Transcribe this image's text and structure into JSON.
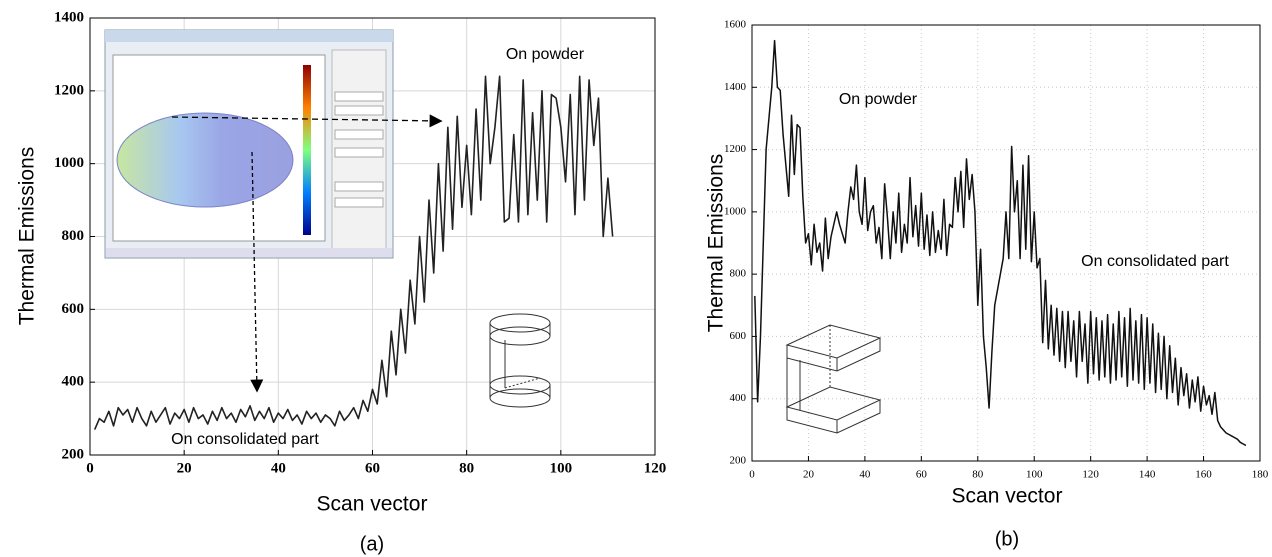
{
  "chart_data": [
    {
      "type": "line",
      "xlabel": "Scan vector",
      "ylabel": "Thermal Emissions",
      "caption": "(a)",
      "annotations": [
        "On powder",
        "On consolidated part"
      ],
      "xlim": [
        0,
        120
      ],
      "xticks": [
        0,
        20,
        40,
        60,
        80,
        100,
        120
      ],
      "ylim": [
        200,
        1400
      ],
      "yticks": [
        200,
        400,
        600,
        800,
        1000,
        1200,
        1400
      ],
      "grid": true,
      "color": "#222222",
      "x": [
        1,
        2,
        3,
        4,
        5,
        6,
        7,
        8,
        9,
        10,
        11,
        12,
        13,
        14,
        15,
        16,
        17,
        18,
        19,
        20,
        21,
        22,
        23,
        24,
        25,
        26,
        27,
        28,
        29,
        30,
        31,
        32,
        33,
        34,
        35,
        36,
        37,
        38,
        39,
        40,
        41,
        42,
        43,
        44,
        45,
        46,
        47,
        48,
        49,
        50,
        51,
        52,
        53,
        54,
        55,
        56,
        57,
        58,
        59,
        60,
        61,
        62,
        63,
        64,
        65,
        66,
        67,
        68,
        69,
        70,
        71,
        72,
        73,
        74,
        75,
        76,
        77,
        78,
        79,
        80,
        81,
        82,
        83,
        84,
        85,
        86,
        87,
        88,
        89,
        90,
        91,
        92,
        93,
        94,
        95,
        96,
        97,
        98,
        99,
        100,
        101,
        102,
        103,
        104,
        105,
        106,
        107,
        108,
        109,
        110,
        111
      ],
      "values": [
        270,
        300,
        290,
        320,
        280,
        330,
        310,
        325,
        290,
        330,
        300,
        280,
        320,
        290,
        310,
        330,
        285,
        315,
        300,
        325,
        290,
        330,
        300,
        310,
        285,
        320,
        295,
        330,
        300,
        315,
        290,
        325,
        305,
        335,
        295,
        320,
        300,
        330,
        290,
        315,
        300,
        325,
        295,
        310,
        285,
        320,
        300,
        315,
        290,
        310,
        300,
        280,
        320,
        295,
        310,
        330,
        300,
        350,
        320,
        380,
        340,
        460,
        360,
        540,
        420,
        600,
        480,
        680,
        560,
        800,
        620,
        900,
        700,
        1000,
        760,
        1100,
        820,
        1130,
        880,
        1050,
        860,
        1150,
        900,
        1240,
        1000,
        1100,
        1240,
        840,
        850,
        1080,
        840,
        1230,
        860,
        1140,
        900,
        1200,
        840,
        1190,
        1180,
        1100,
        950,
        1190,
        860,
        1240,
        900,
        1230,
        1050,
        1180,
        800,
        960,
        800
      ]
    },
    {
      "type": "line",
      "xlabel": "Scan vector",
      "ylabel": "Thermal Emissions",
      "caption": "(b)",
      "annotations": [
        "On powder",
        "On consolidated part"
      ],
      "xlim": [
        0,
        180
      ],
      "xticks": [
        0,
        20,
        40,
        60,
        80,
        100,
        120,
        140,
        160,
        180
      ],
      "ylim": [
        200,
        1600
      ],
      "yticks": [
        200,
        400,
        600,
        800,
        1000,
        1200,
        1400,
        1600
      ],
      "grid": true,
      "color": "#111111",
      "x": [
        1,
        2,
        3,
        4,
        5,
        6,
        7,
        8,
        9,
        10,
        11,
        12,
        13,
        14,
        15,
        16,
        17,
        18,
        19,
        20,
        21,
        22,
        23,
        24,
        25,
        26,
        27,
        28,
        29,
        30,
        31,
        32,
        33,
        34,
        35,
        36,
        37,
        38,
        39,
        40,
        41,
        42,
        43,
        44,
        45,
        46,
        47,
        48,
        49,
        50,
        51,
        52,
        53,
        54,
        55,
        56,
        57,
        58,
        59,
        60,
        61,
        62,
        63,
        64,
        65,
        66,
        67,
        68,
        69,
        70,
        71,
        72,
        73,
        74,
        75,
        76,
        77,
        78,
        79,
        80,
        81,
        82,
        83,
        84,
        85,
        86,
        87,
        88,
        89,
        90,
        91,
        92,
        93,
        94,
        95,
        96,
        97,
        98,
        99,
        100,
        101,
        102,
        103,
        104,
        105,
        106,
        107,
        108,
        109,
        110,
        111,
        112,
        113,
        114,
        115,
        116,
        117,
        118,
        119,
        120,
        121,
        122,
        123,
        124,
        125,
        126,
        127,
        128,
        129,
        130,
        131,
        132,
        133,
        134,
        135,
        136,
        137,
        138,
        139,
        140,
        141,
        142,
        143,
        144,
        145,
        146,
        147,
        148,
        149,
        150,
        151,
        152,
        153,
        154,
        155,
        156,
        157,
        158,
        159,
        160,
        161,
        162,
        163,
        164,
        165,
        166,
        167,
        168,
        169,
        170,
        171,
        172,
        173,
        174,
        175
      ],
      "values": [
        730,
        390,
        600,
        900,
        1200,
        1300,
        1400,
        1550,
        1400,
        1390,
        1250,
        1150,
        1050,
        1310,
        1120,
        1280,
        1270,
        1050,
        900,
        930,
        830,
        960,
        870,
        900,
        810,
        980,
        850,
        920,
        960,
        1000,
        960,
        930,
        900,
        1000,
        1080,
        1040,
        1150,
        1000,
        960,
        1110,
        940,
        1000,
        1020,
        900,
        950,
        850,
        1090,
        980,
        850,
        1000,
        900,
        1060,
        870,
        960,
        900,
        1110,
        920,
        1020,
        890,
        1060,
        880,
        990,
        860,
        1000,
        870,
        940,
        880,
        1040,
        860,
        960,
        950,
        1110,
        1000,
        1130,
        950,
        1170,
        1040,
        1120,
        1000,
        700,
        880,
        600,
        500,
        370,
        550,
        700,
        750,
        800,
        850,
        1000,
        850,
        1210,
        1000,
        1100,
        850,
        1150,
        880,
        1180,
        840,
        1000,
        820,
        850,
        580,
        780,
        560,
        700,
        540,
        690,
        520,
        680,
        500,
        680,
        520,
        650,
        470,
        680,
        520,
        640,
        450,
        680,
        480,
        660,
        460,
        650,
        470,
        670,
        450,
        640,
        460,
        680,
        470,
        660,
        440,
        690,
        460,
        650,
        450,
        670,
        430,
        660,
        450,
        640,
        420,
        610,
        430,
        600,
        400,
        570,
        420,
        530,
        380,
        500,
        410,
        480,
        370,
        460,
        390,
        470,
        360,
        440,
        380,
        410,
        350,
        420,
        330,
        310,
        300,
        290,
        285,
        280,
        275,
        270,
        260,
        255,
        250
      ]
    }
  ]
}
